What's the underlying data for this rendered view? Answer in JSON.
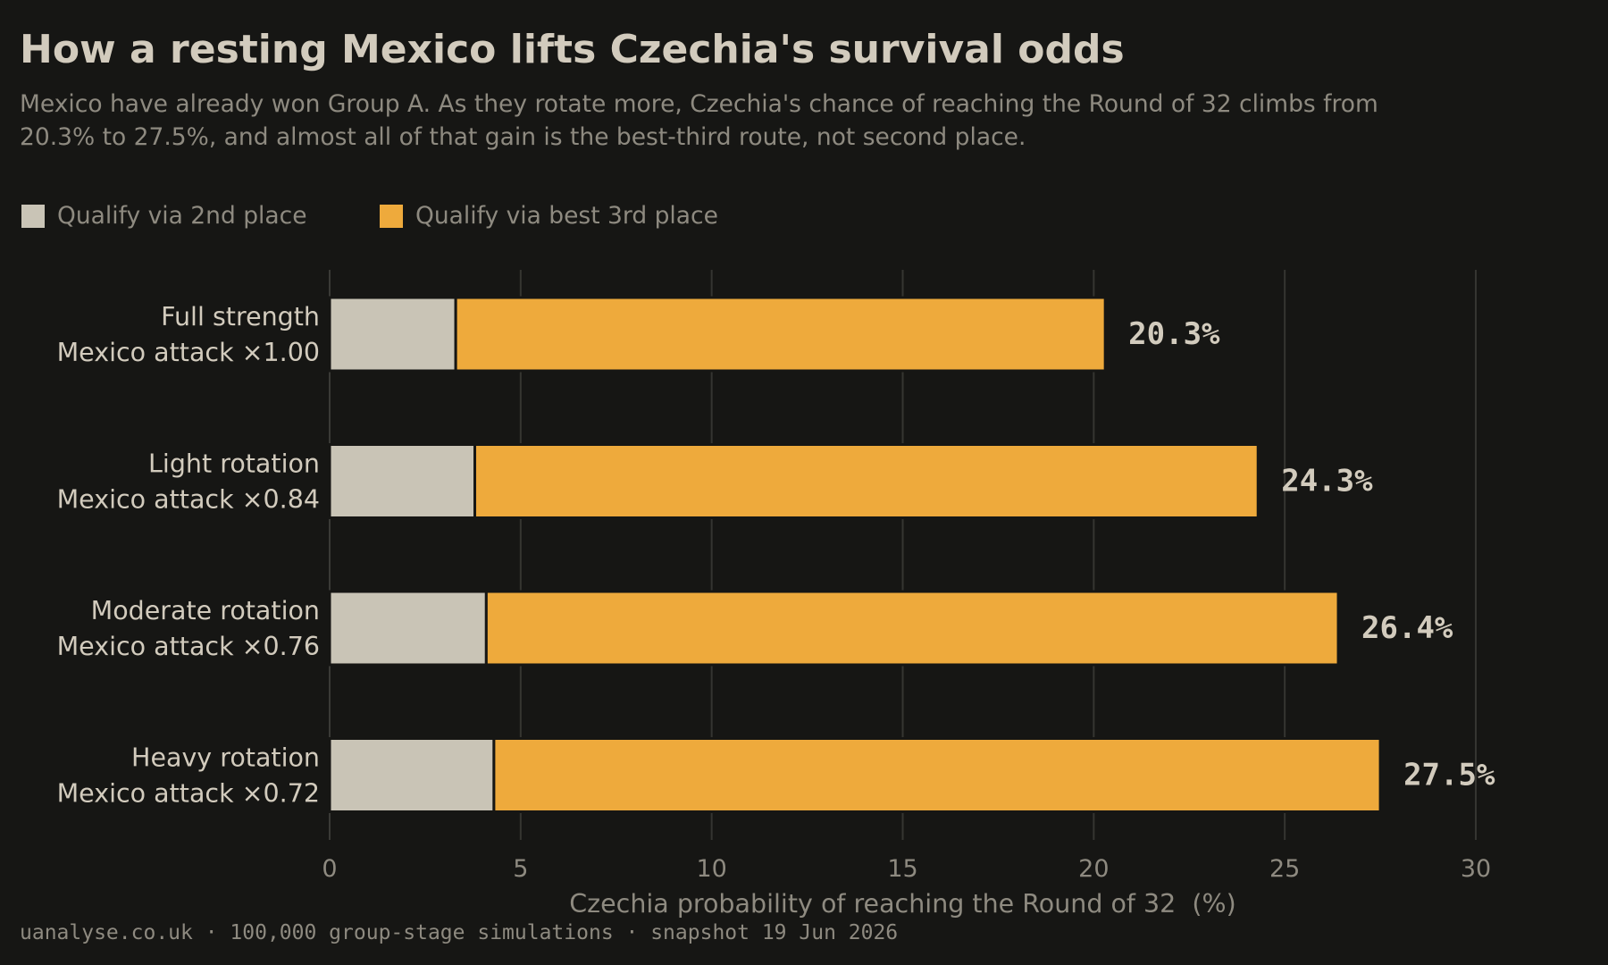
{
  "chart_data": {
    "type": "bar",
    "orientation": "horizontal",
    "stacked": true,
    "title": "How a resting Mexico lifts Czechia's survival odds",
    "subtitle": "Mexico have already won Group A. As they rotate more, Czechia's chance of reaching the Round of 32 climbs from 20.3% to 27.5%, and almost all of that gain is the best-third route, not second place.",
    "categories": [
      {
        "line1": "Full strength",
        "line2": "Mexico attack ×1.00"
      },
      {
        "line1": "Light rotation",
        "line2": "Mexico attack ×0.84"
      },
      {
        "line1": "Moderate rotation",
        "line2": "Mexico attack ×0.76"
      },
      {
        "line1": "Heavy rotation",
        "line2": "Mexico attack ×0.72"
      }
    ],
    "series": [
      {
        "name": "Qualify via 2nd place",
        "color": "#c9c4b6",
        "values": [
          3.3,
          3.8,
          4.1,
          4.3
        ]
      },
      {
        "name": "Qualify via best 3rd place",
        "color": "#eeaa3c",
        "values": [
          17.0,
          20.5,
          22.3,
          23.2
        ]
      }
    ],
    "totals": [
      "20.3%",
      "24.3%",
      "26.4%",
      "27.5%"
    ],
    "total_values": [
      20.3,
      24.3,
      26.4,
      27.5
    ],
    "xlabel": "Czechia probability of reaching the Round of 32  (%)",
    "xlim": [
      0,
      30
    ],
    "xticks": [
      0,
      5,
      10,
      15,
      20,
      25,
      30
    ],
    "xtick_labels": [
      "0",
      "5",
      "10",
      "15",
      "20",
      "25",
      "30"
    ],
    "grid": "vertical",
    "legend_position": "top-left"
  },
  "footer": "uanalyse.co.uk  ·  100,000 group-stage simulations  ·  snapshot 19 Jun 2026"
}
